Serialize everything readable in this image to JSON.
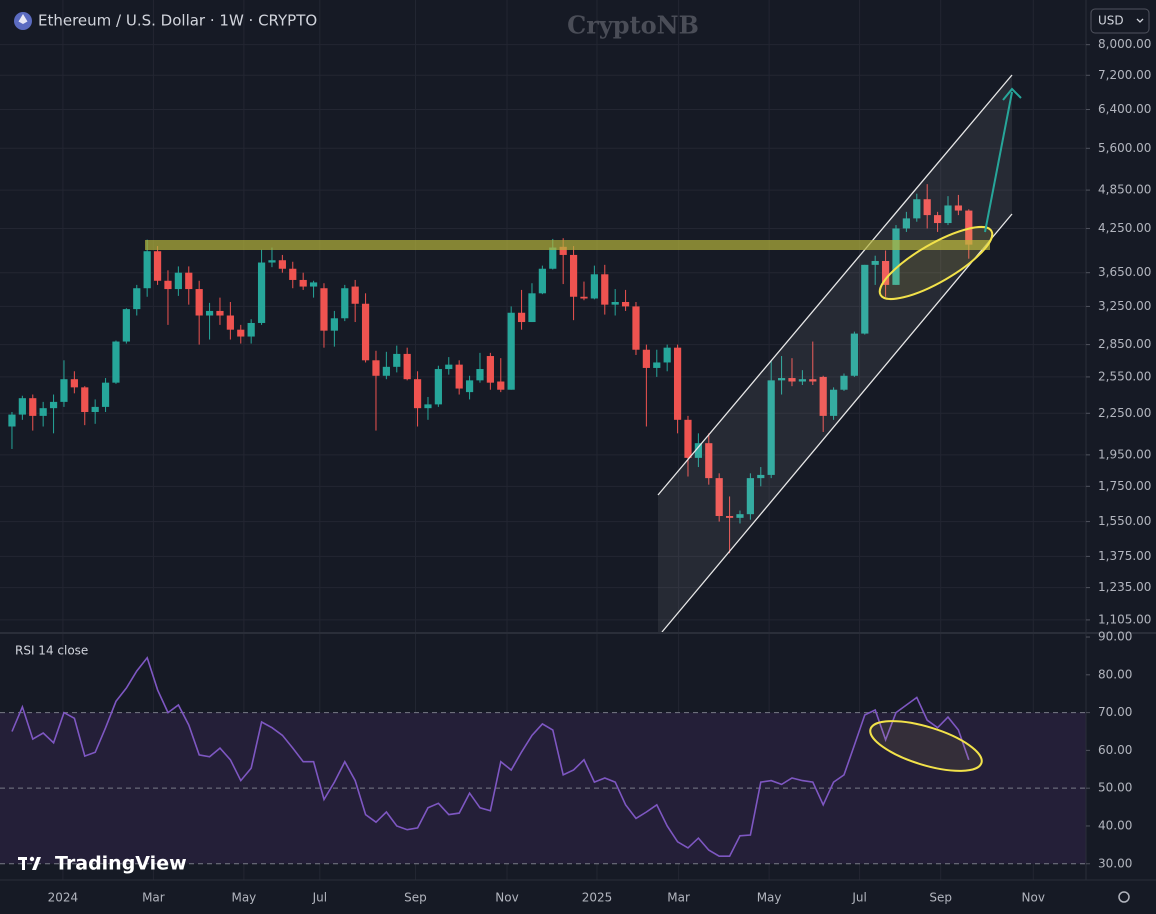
{
  "header": {
    "symbol": "Ethereum / U.S. Dollar · 1W · CRYPTO",
    "watermark": "CryptoNB",
    "currency": "USD",
    "brand": "TradingView"
  },
  "chart_data": [
    {
      "type": "candlestick",
      "log_scale": true,
      "grid": true,
      "up_color": "#26a69a",
      "down_color": "#ef5350",
      "open": [
        2150,
        2240,
        2370,
        2230,
        2290,
        2340,
        2530,
        2460,
        2260,
        2300,
        2500,
        2880,
        3220,
        3460,
        3930,
        3550,
        3450,
        3650,
        3450,
        3150,
        3200,
        3150,
        3000,
        2930,
        3070,
        3780,
        3810,
        3700,
        3560,
        3480,
        3460,
        2990,
        3120,
        3480,
        3280,
        2700,
        2560,
        2640,
        2760,
        2530,
        2290,
        2320,
        2620,
        2660,
        2420,
        2520,
        2740,
        2510,
        2440,
        3180,
        3080,
        3400,
        3700,
        3990,
        3880,
        3360,
        3340,
        3630,
        3270,
        3300,
        3250,
        2800,
        2630,
        2680,
        2820,
        2200,
        1930,
        2030,
        1800,
        1580,
        1570,
        1590,
        1800,
        1820,
        2520,
        2540,
        2510,
        2530,
        2550,
        2230,
        2440,
        2560,
        2960,
        3750,
        3800,
        3500,
        4250,
        4400,
        4700,
        4450,
        4330,
        4600,
        4520
      ],
      "high": [
        2260,
        2390,
        2400,
        2340,
        2400,
        2700,
        2600,
        2470,
        2360,
        2540,
        2890,
        3230,
        3500,
        4090,
        4000,
        3680,
        3730,
        3730,
        3550,
        3290,
        3350,
        3300,
        3050,
        3110,
        3950,
        3980,
        3880,
        3790,
        3650,
        3550,
        3520,
        3200,
        3500,
        3560,
        3400,
        2790,
        2780,
        2840,
        2820,
        2600,
        2380,
        2650,
        2730,
        2700,
        2560,
        2770,
        2770,
        2720,
        3250,
        3440,
        3520,
        3740,
        4100,
        4110,
        4000,
        3540,
        3740,
        3750,
        3450,
        3440,
        3300,
        2850,
        2800,
        2850,
        2850,
        2230,
        2100,
        2100,
        1830,
        1690,
        1610,
        1830,
        1870,
        2700,
        2740,
        2720,
        2610,
        2880,
        2560,
        2460,
        2580,
        2980,
        3750,
        3870,
        3940,
        4300,
        4500,
        4790,
        4950,
        4500,
        4750,
        4770,
        4540
      ],
      "low": [
        1990,
        2200,
        2120,
        2150,
        2100,
        2300,
        2410,
        2160,
        2170,
        2260,
        2490,
        2860,
        3150,
        3360,
        3500,
        3050,
        3370,
        3270,
        2850,
        2900,
        3050,
        2900,
        2860,
        2860,
        3050,
        3720,
        3650,
        3460,
        3440,
        3350,
        2820,
        2830,
        3090,
        3080,
        2680,
        2120,
        2530,
        2590,
        2520,
        2150,
        2200,
        2300,
        2570,
        2400,
        2360,
        2500,
        2440,
        2420,
        2440,
        3000,
        3080,
        3390,
        3690,
        3510,
        3100,
        3320,
        3330,
        3160,
        3150,
        3200,
        2750,
        2150,
        2550,
        2600,
        2100,
        1810,
        1870,
        1760,
        1550,
        1390,
        1540,
        1560,
        1750,
        1800,
        2400,
        2470,
        2480,
        2480,
        2110,
        2200,
        2430,
        2550,
        2950,
        3500,
        3360,
        3500,
        4200,
        4350,
        4250,
        4200,
        4300,
        4450,
        3830
      ],
      "close": [
        2240,
        2370,
        2230,
        2290,
        2340,
        2530,
        2460,
        2260,
        2300,
        2500,
        2880,
        3220,
        3460,
        3930,
        3550,
        3450,
        3650,
        3450,
        3150,
        3200,
        3150,
        3000,
        2930,
        3070,
        3780,
        3810,
        3700,
        3560,
        3480,
        3530,
        2990,
        3120,
        3460,
        3280,
        2700,
        2560,
        2640,
        2760,
        2530,
        2290,
        2320,
        2620,
        2660,
        2450,
        2520,
        2620,
        2500,
        2440,
        3180,
        3080,
        3400,
        3700,
        3980,
        3880,
        3360,
        3340,
        3630,
        3270,
        3300,
        3250,
        2800,
        2630,
        2680,
        2820,
        2200,
        1930,
        2030,
        1800,
        1580,
        1570,
        1590,
        1800,
        1820,
        2520,
        2540,
        2510,
        2530,
        2510,
        2230,
        2440,
        2560,
        2960,
        3750,
        3800,
        3500,
        4250,
        4400,
        4700,
        4450,
        4330,
        4600,
        4520,
        4020
      ],
      "ylim": [
        1060,
        9170
      ],
      "yticks": [
        {
          "value": 1105,
          "label": "1,105.00"
        },
        {
          "value": 1235,
          "label": "1,235.00"
        },
        {
          "value": 1375,
          "label": "1,375.00"
        },
        {
          "value": 1550,
          "label": "1,550.00"
        },
        {
          "value": 1750,
          "label": "1,750.00"
        },
        {
          "value": 1950,
          "label": "1,950.00"
        },
        {
          "value": 2250,
          "label": "2,250.00"
        },
        {
          "value": 2550,
          "label": "2,550.00"
        },
        {
          "value": 2850,
          "label": "2,850.00"
        },
        {
          "value": 3250,
          "label": "3,250.00"
        },
        {
          "value": 3650,
          "label": "3,650.00"
        },
        {
          "value": 4250,
          "label": "4,250.00"
        },
        {
          "value": 4850,
          "label": "4,850.00"
        },
        {
          "value": 5600,
          "label": "5,600.00"
        },
        {
          "value": 6400,
          "label": "6,400.00"
        },
        {
          "value": 7200,
          "label": "7,200.00"
        },
        {
          "value": 8000,
          "label": "8,000.00"
        }
      ],
      "xlim": [
        -1.15,
        103.27
      ],
      "xticks": [
        {
          "value": 4.9,
          "label": "2024"
        },
        {
          "value": 13.6,
          "label": "Mar"
        },
        {
          "value": 22.3,
          "label": "May"
        },
        {
          "value": 29.6,
          "label": "Jul"
        },
        {
          "value": 38.8,
          "label": "Sep"
        },
        {
          "value": 47.6,
          "label": "Nov"
        },
        {
          "value": 56.25,
          "label": "2025"
        },
        {
          "value": 64.1,
          "label": "Mar"
        },
        {
          "value": 72.8,
          "label": "May"
        },
        {
          "value": 81.5,
          "label": "Jul"
        },
        {
          "value": 89.3,
          "label": "Sep"
        },
        {
          "value": 98.2,
          "label": "Nov"
        }
      ]
    },
    {
      "type": "line",
      "title": "RSI 14 close",
      "color": "#7e57c2",
      "band_color": "#241f38",
      "values": [
        65,
        71.5,
        63,
        64.6,
        62,
        70,
        68.5,
        58.5,
        59.5,
        66,
        73,
        76.5,
        81,
        84.5,
        76,
        70,
        72,
        66.7,
        58.8,
        58.3,
        60.6,
        57.5,
        52,
        55.3,
        67.5,
        66,
        64,
        60.6,
        57,
        57,
        47,
        51.6,
        57,
        52,
        43,
        41,
        43.7,
        40,
        39,
        39.5,
        44.8,
        46,
        43,
        43.4,
        48.7,
        44.8,
        44,
        57,
        54.8,
        59.6,
        64,
        67,
        65.4,
        53.5,
        54.8,
        57.5,
        51.6,
        52.7,
        51.6,
        45.6,
        42,
        43.7,
        45.6,
        40,
        35.8,
        34.2,
        36.8,
        33.6,
        32,
        32,
        37.4,
        37.6,
        51.6,
        52,
        51,
        52.7,
        52,
        51.6,
        45.6,
        51.6,
        53.5,
        61.4,
        69.4,
        70.7,
        62.8,
        70,
        72,
        74,
        68,
        66,
        68.8,
        65.4,
        57.5
      ],
      "ylim": [
        25.7,
        90.8
      ],
      "yticks": [
        {
          "value": 30,
          "label": "30.00"
        },
        {
          "value": 40,
          "label": "40.00"
        },
        {
          "value": 50,
          "label": "50.00"
        },
        {
          "value": 60,
          "label": "60.00"
        },
        {
          "value": 70,
          "label": "70.00"
        },
        {
          "value": 80,
          "label": "80.00"
        },
        {
          "value": 90,
          "label": "90.00"
        }
      ],
      "levels": [
        30,
        50,
        70
      ]
    }
  ]
}
